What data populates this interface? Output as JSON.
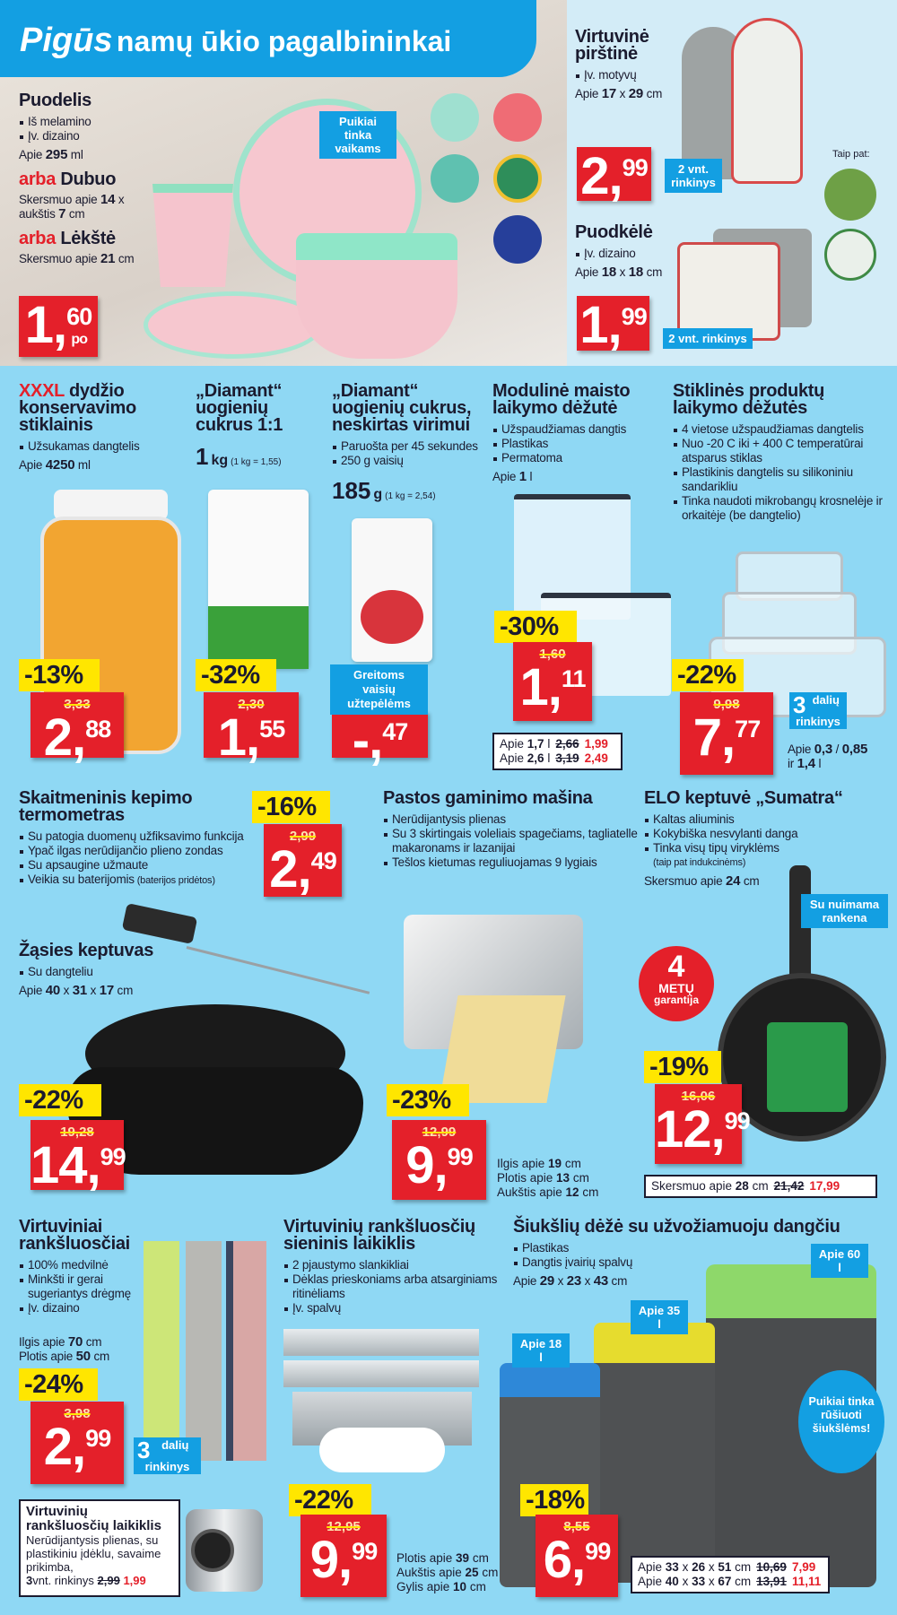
{
  "header": {
    "brand": "Pigūs",
    "title": "namų ūkio pagalbininkai"
  },
  "colors": {
    "background": "#8fd8f4",
    "banner": "#139fe2",
    "price_red": "#e4202a",
    "discount_yellow": "#ffe600"
  },
  "tableware": {
    "title": "Puodelis",
    "bullets": [
      "Iš melamino",
      "Įv. dizaino"
    ],
    "spec": "Apie 295 ml",
    "alt1": {
      "prefix": "arba",
      "title": "Dubuo",
      "spec1": "Skersmuo apie 14 x",
      "spec2": "aukštis 7 cm"
    },
    "alt2": {
      "prefix": "arba",
      "title": "Lėkštė",
      "spec1": "Skersmuo apie 21 cm"
    },
    "badge": "Puikiai tinka vaikams",
    "price": {
      "main": "1",
      "cents": "60",
      "suffix": "po"
    }
  },
  "products": {
    "glove": {
      "title": "Virtuvinė pirštinė",
      "bullets": [
        "Įv. motyvų"
      ],
      "spec": [
        "Apie 17 x 29 cm"
      ],
      "price": {
        "main": "2",
        "cents": "99"
      },
      "badge": "2 vnt. rinkinys",
      "also": "Taip pat:"
    },
    "potholder": {
      "title": "Puodkėlė",
      "bullets": [
        "Įv. dizaino"
      ],
      "spec": [
        "Apie 18 x 18 cm"
      ],
      "price": {
        "main": "1",
        "cents": "99"
      },
      "badge": "2 vnt. rinkinys"
    },
    "jar": {
      "title_highlight": "XXXL",
      "title": " dydžio konservavimo stiklainis",
      "bullets": [
        "Užsukamas dangtelis"
      ],
      "spec": [
        "Apie 4250 ml"
      ],
      "price": {
        "discount": "-13%",
        "old": "3,33",
        "main": "2",
        "cents": "88"
      }
    },
    "sugar1": {
      "title": "„Diamant“ uogienių cukrus 1:1",
      "weight": "1",
      "unit": "kg",
      "unit_price": "(1 kg = 1,55)",
      "price": {
        "discount": "-32%",
        "old": "2,30",
        "main": "1",
        "cents": "55"
      }
    },
    "sugar2": {
      "title": "„Diamant“ uogienių cukrus, neskirtas virimui",
      "bullets": [
        "Paruošta per 45 sekundes",
        "250 g vaisių"
      ],
      "weight": "185",
      "unit": "g",
      "unit_price": "(1 kg = 2,54)",
      "badge": "Greitoms vaisių užtepėlėms",
      "price": {
        "main": "-",
        "cents": "47"
      }
    },
    "box": {
      "title": "Modulinė maisto laikymo dėžutė",
      "bullets": [
        "Užspaudžiamas dangtis",
        "Plastikas",
        "Permatoma"
      ],
      "spec": [
        "Apie 1 l"
      ],
      "price": {
        "discount": "-30%",
        "old": "1,60",
        "main": "1",
        "cents": "11"
      },
      "variants": [
        {
          "size": "Apie 1,7 l",
          "old": "2,66",
          "new": "1,99"
        },
        {
          "size": "Apie 2,6 l",
          "old": "3,19",
          "new": "2,49"
        }
      ]
    },
    "glass": {
      "title": "Stiklinės produktų laikymo dėžutės",
      "bullets": [
        "4 vietose užspaudžiamas dangtelis",
        "Nuo -20 C iki + 400 C temperatūrai atsparus stiklas",
        "Plastikinis dangtelis su silikoniniu sandarikliu",
        "Tinka naudoti mikrobangų krosnelėje ir orkaitėje (be dangtelio)"
      ],
      "price": {
        "discount": "-22%",
        "old": "9,98",
        "main": "7",
        "cents": "77"
      },
      "badge_num": "3",
      "badge": "dalių rinkinys",
      "spec": [
        "Apie 0,3 / 0,85 ir 1,4 l"
      ]
    },
    "thermo": {
      "title": "Skaitmeninis kepimo termometras",
      "bullets": [
        "Su patogia duomenų užfiksavimo funkcija",
        "Ypač ilgas nerūdijančio plieno zondas",
        "Su apsaugine užmaute",
        "Veikia su baterijomis"
      ],
      "note": "(baterijos pridėtos)",
      "price": {
        "discount": "-16%",
        "old": "2,99",
        "main": "2",
        "cents": "49"
      }
    },
    "roaster": {
      "title": "Žąsies keptuvas",
      "bullets": [
        "Su dangteliu"
      ],
      "spec": [
        "Apie 40 x 31 x 17 cm"
      ],
      "price": {
        "discount": "-22%",
        "old": "19,28",
        "main": "14",
        "cents": "99"
      }
    },
    "pasta": {
      "title": "Pastos gaminimo mašina",
      "bullets": [
        "Nerūdijantysis plienas",
        "Su 3 skirtingais voleliais spagečiams, tagliatelle makaronams ir lazanijai",
        "Tešlos kietumas reguliuojamas 9 lygiais"
      ],
      "price": {
        "discount": "-23%",
        "old": "12,99",
        "main": "9",
        "cents": "99"
      },
      "dims": [
        "Ilgis apie 19 cm",
        "Plotis apie 13 cm",
        "Aukštis apie 12 cm"
      ]
    },
    "pan": {
      "title": "ELO keptuvė „Sumatra“",
      "bullets": [
        "Kaltas aliuminis",
        "Kokybiška nesvylanti danga",
        "Tinka visų tipų viryklėms"
      ],
      "note": "(taip pat indukcinėms)",
      "spec": [
        "Skersmuo apie 24 cm"
      ],
      "badge": "Su nuimama rankena",
      "warranty": {
        "num": "4",
        "word": "METŲ",
        "label": "garantija"
      },
      "price": {
        "discount": "-19%",
        "old": "16,06",
        "main": "12",
        "cents": "99"
      },
      "variants": [
        {
          "size": "Skersmuo apie 28 cm",
          "old": "21,42",
          "new": "17,99"
        }
      ]
    },
    "towels": {
      "title": "Virtuviniai rankšluosčiai",
      "bullets": [
        "100% medvilnė",
        "Minkšti ir gerai sugeriantys drėgmę",
        "Įv. dizaino"
      ],
      "spec": [
        "Ilgis apie 70 cm",
        "Plotis apie 50 cm"
      ],
      "price": {
        "discount": "-24%",
        "old": "3,98",
        "main": "2",
        "cents": "99"
      },
      "badge_num": "3",
      "badge": "dalių rinkinys"
    },
    "holder": {
      "title": "Virtuvinių rankšluosčių laikiklis",
      "desc": "Nerūdijantysis plienas, su plastikiniu įdėklu, savaime prikimba,",
      "qty": "3",
      "set": "vnt. rinkinys",
      "old": "2,99",
      "new": "1,99"
    },
    "rack": {
      "title": "Virtuvinių rankšluosčių sieninis laikiklis",
      "bullets": [
        "2 pjaustymo slankikliai",
        "Dėklas prieskoniams arba atsarginiams ritinėliams",
        "Įv. spalvų"
      ],
      "price": {
        "discount": "-22%",
        "old": "12,95",
        "main": "9",
        "cents": "99"
      },
      "dims": [
        "Plotis apie 39 cm",
        "Aukštis apie 25 cm",
        "Gylis apie 10 cm"
      ]
    },
    "bin": {
      "title": "Šiukšlių dėžė su užvožiamuoju dangčiu",
      "bullets": [
        "Plastikas",
        "Dangtis įvairių spalvų"
      ],
      "spec": [
        "Apie 29 x 23 x 43 cm"
      ],
      "sizes": [
        "Apie 18 l",
        "Apie 35 l",
        "Apie 60 l"
      ],
      "badge": "Puikiai tinka rūšiuoti šiukšlėms!",
      "price": {
        "discount": "-18%",
        "old": "8,55",
        "main": "6",
        "cents": "99"
      },
      "variants": [
        {
          "size": "Apie 33 x 26 x 51 cm",
          "old": "10,69",
          "new": "7,99"
        },
        {
          "size": "Apie 40 x 33 x 67 cm",
          "old": "13,91",
          "new": "11,11"
        }
      ]
    }
  }
}
